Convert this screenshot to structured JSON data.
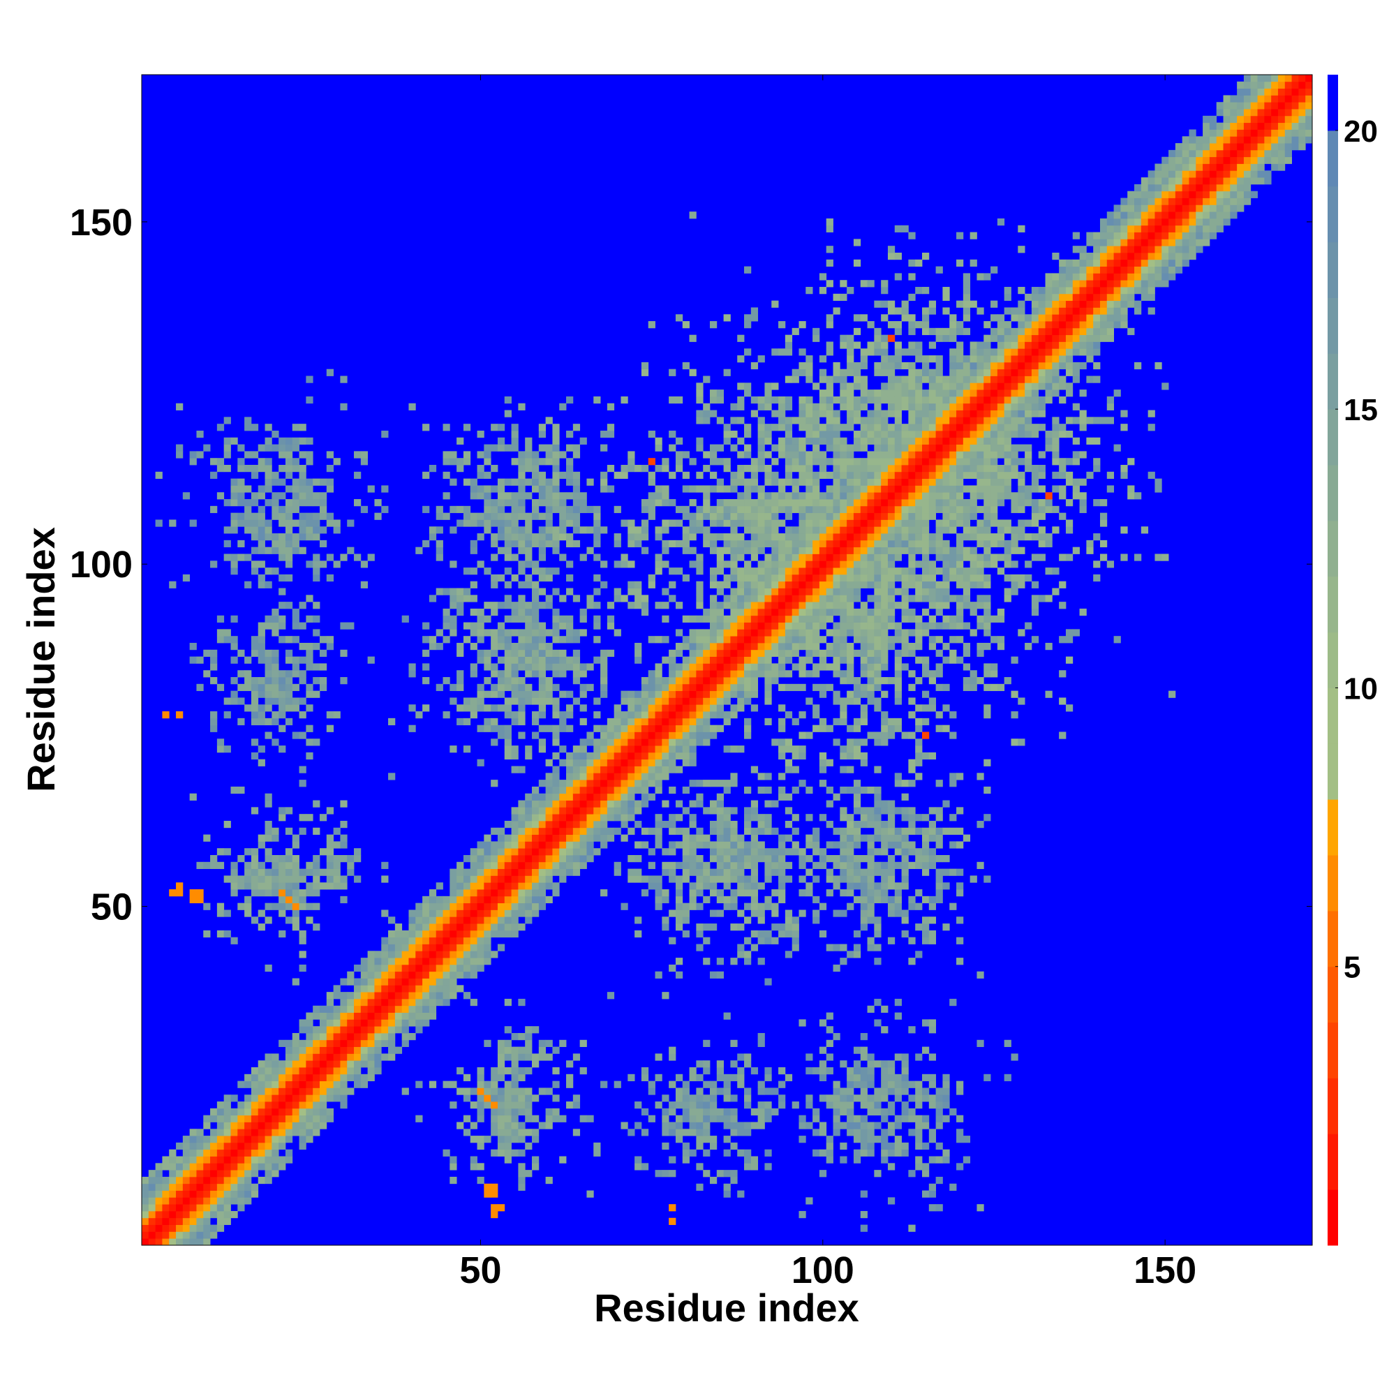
{
  "chart_data": {
    "type": "heatmap",
    "title": "",
    "xlabel": "Residue index",
    "ylabel": "Residue index",
    "n_residues": 171,
    "xlim": [
      1,
      171
    ],
    "ylim": [
      1,
      171
    ],
    "x_ticks": [
      50,
      100,
      150
    ],
    "y_ticks": [
      50,
      100,
      150
    ],
    "x_tick_labels": [
      "50",
      "100",
      "150"
    ],
    "y_tick_labels": [
      "50",
      "100",
      "150"
    ],
    "colorbar": {
      "range": [
        0,
        21
      ],
      "ticks": [
        5,
        10,
        15,
        20
      ],
      "tick_labels": [
        "5",
        "10",
        "15",
        "20"
      ],
      "levels": [
        {
          "max": 1,
          "color": "#ff0000"
        },
        {
          "max": 2,
          "color": "#ff1a00"
        },
        {
          "max": 3,
          "color": "#ff2f00"
        },
        {
          "max": 4,
          "color": "#ff4500"
        },
        {
          "max": 5,
          "color": "#ff5a00"
        },
        {
          "max": 6,
          "color": "#ff7000"
        },
        {
          "max": 7,
          "color": "#ff8c00"
        },
        {
          "max": 8,
          "color": "#ffa500"
        },
        {
          "max": 9,
          "color": "#a3bf85"
        },
        {
          "max": 10,
          "color": "#a3bf85"
        },
        {
          "max": 11,
          "color": "#9dbb88"
        },
        {
          "max": 12,
          "color": "#97b68c"
        },
        {
          "max": 13,
          "color": "#90b090"
        },
        {
          "max": 14,
          "color": "#88aa94"
        },
        {
          "max": 15,
          "color": "#82a59a"
        },
        {
          "max": 16,
          "color": "#7a9fa0"
        },
        {
          "max": 17,
          "color": "#7399a5"
        },
        {
          "max": 18,
          "color": "#6c93aa"
        },
        {
          "max": 19,
          "color": "#668eb0"
        },
        {
          "max": 20,
          "color": "#5f88b5"
        },
        {
          "max": 21,
          "color": "#0000ff"
        }
      ]
    },
    "background_value": 21,
    "background_color": "#0000ff",
    "diagonal": {
      "core_width_residues": 2.2,
      "orange_band_residues": 4,
      "halo_residues": 6
    },
    "contact_clusters": [
      {
        "x": [
          20,
          20
        ],
        "y": [
          52,
          52
        ],
        "spread": 4,
        "mean_value": 14,
        "density": 0.7
      },
      {
        "x": [
          20,
          20
        ],
        "y": [
          82,
          82
        ],
        "spread": 6,
        "mean_value": 15,
        "density": 0.65
      },
      {
        "x": [
          20,
          20
        ],
        "y": [
          108,
          108
        ],
        "spread": 7,
        "mean_value": 15,
        "density": 0.6
      },
      {
        "x": [
          55,
          55
        ],
        "y": [
          22,
          22
        ],
        "spread": 8,
        "mean_value": 14,
        "density": 0.7
      },
      {
        "x": [
          58,
          58
        ],
        "y": [
          82,
          82
        ],
        "spread": 9,
        "mean_value": 14,
        "density": 0.7
      },
      {
        "x": [
          57,
          57
        ],
        "y": [
          110,
          110
        ],
        "spread": 8,
        "mean_value": 14,
        "density": 0.7
      },
      {
        "x": [
          85,
          85
        ],
        "y": [
          20,
          20
        ],
        "spread": 8,
        "mean_value": 15,
        "density": 0.6
      },
      {
        "x": [
          88,
          88
        ],
        "y": [
          55,
          55
        ],
        "spread": 10,
        "mean_value": 14,
        "density": 0.7
      },
      {
        "x": [
          105,
          105
        ],
        "y": [
          90,
          90
        ],
        "spread": 16,
        "mean_value": 13,
        "density": 0.75
      },
      {
        "x": [
          108,
          108
        ],
        "y": [
          55,
          55
        ],
        "spread": 9,
        "mean_value": 15,
        "density": 0.65
      },
      {
        "x": [
          110,
          110
        ],
        "y": [
          20,
          20
        ],
        "spread": 10,
        "mean_value": 15,
        "density": 0.55
      },
      {
        "x": [
          115,
          115
        ],
        "y": [
          115,
          115
        ],
        "spread": 18,
        "mean_value": 13,
        "density": 0.75
      }
    ],
    "strong_contacts": [
      {
        "x": 8,
        "y": 52,
        "value": 7
      },
      {
        "x": 9,
        "y": 52,
        "value": 7
      },
      {
        "x": 8,
        "y": 51,
        "value": 7
      },
      {
        "x": 9,
        "y": 51,
        "value": 7
      },
      {
        "x": 23,
        "y": 50,
        "value": 7
      },
      {
        "x": 22,
        "y": 51,
        "value": 7
      },
      {
        "x": 52,
        "y": 5,
        "value": 7
      },
      {
        "x": 53,
        "y": 6,
        "value": 7
      },
      {
        "x": 52,
        "y": 6,
        "value": 7
      },
      {
        "x": 51,
        "y": 22,
        "value": 7
      },
      {
        "x": 52,
        "y": 21,
        "value": 7
      },
      {
        "x": 6,
        "y": 78,
        "value": 7
      },
      {
        "x": 115,
        "y": 75,
        "value": 4
      },
      {
        "x": 110,
        "y": 133,
        "value": 4
      },
      {
        "x": 78,
        "y": 4,
        "value": 7
      }
    ]
  }
}
